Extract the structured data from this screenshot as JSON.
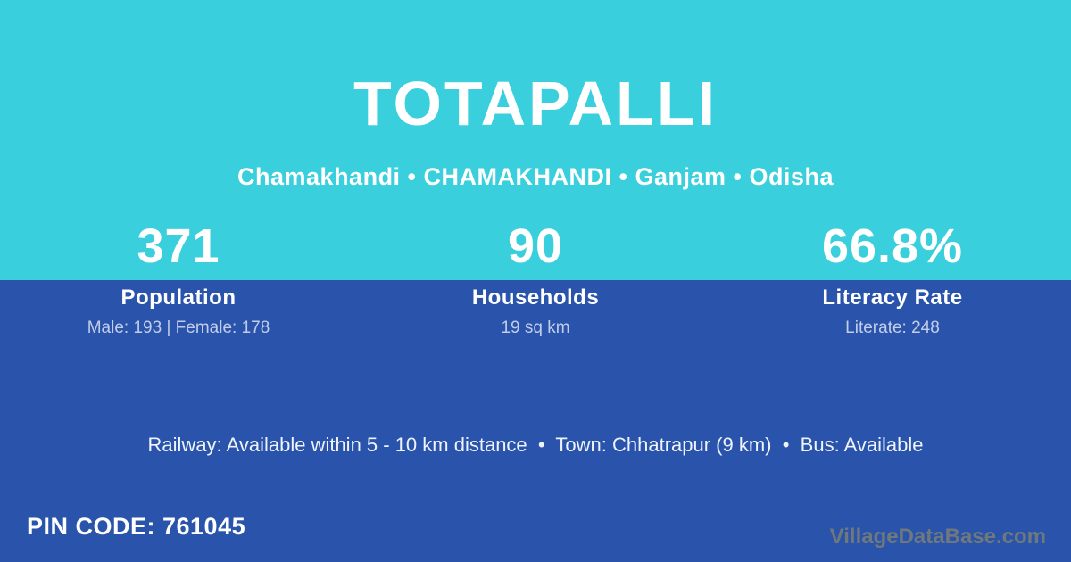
{
  "header": {
    "title": "TOTAPALLI",
    "subtitle": "Chamakhandi • CHAMAKHANDI • Ganjam • Odisha"
  },
  "stats": [
    {
      "value": "371",
      "label": "Population",
      "detail": "Male: 193 | Female: 178"
    },
    {
      "value": "90",
      "label": "Households",
      "detail": "19 sq km"
    },
    {
      "value": "66.8%",
      "label": "Literacy Rate",
      "detail": "Literate: 248"
    }
  ],
  "info_line": "Railway: Available within 5 - 10 km distance  •  Town: Chhatrapur (9 km)  •  Bus: Available",
  "footer": {
    "pin_code": "PIN CODE: 761045",
    "watermark": "VillageDataBase.com"
  },
  "colors": {
    "top_bg": "#39cfdc",
    "bottom_bg": "#2a54ab",
    "text_primary": "#ffffff",
    "text_muted": "#c2cdea",
    "watermark": "#6f787d"
  }
}
